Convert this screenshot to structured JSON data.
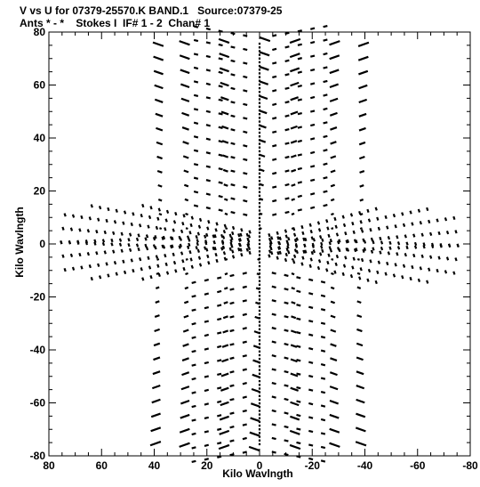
{
  "title_line1": "V vs U for 07379-25570.K BAND.1   Source:07379-25",
  "title_line2": "Ants * - *    Stokes I  IF# 1 - 2  Chan# 1",
  "chart_data": {
    "type": "scatter",
    "title": "V vs U for 07379-25570.K BAND.1   Source:07379-25",
    "subtitle": "Ants * - *    Stokes I  IF# 1 - 2  Chan# 1",
    "xlabel": "Kilo Wavlngth",
    "ylabel": "Kilo Wavlngth",
    "xlim": [
      80,
      -80
    ],
    "ylim": [
      -80,
      80
    ],
    "xticks": [
      80,
      60,
      40,
      20,
      0,
      -20,
      -40,
      -60,
      -80
    ],
    "yticks": [
      80,
      60,
      40,
      20,
      0,
      -20,
      -40,
      -60,
      -80
    ],
    "grid": false,
    "marker_color": "#000000",
    "pattern": "6-fold uv coverage: short radial tracks along three baseline directions (V axis, and two diagonals reaching about ±77 kilo wavelength in U), mirrored through the origin"
  }
}
